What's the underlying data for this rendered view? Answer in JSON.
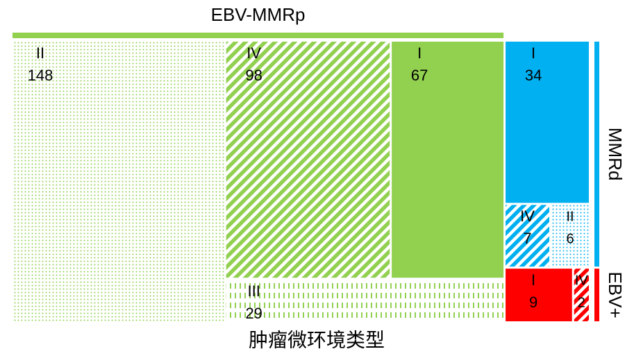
{
  "chart_data": {
    "type": "treemap",
    "title": "肿瘤微环境类型",
    "groups": [
      {
        "name": "EBV-MMRp",
        "color": "#92d050",
        "categories": [
          "II",
          "IV",
          "I",
          "III"
        ],
        "values": [
          148,
          98,
          67,
          29
        ],
        "patterns": [
          "dots",
          "stripes",
          "solid",
          "dashes"
        ]
      },
      {
        "name": "MMRd",
        "color": "#00b0f0",
        "categories": [
          "I",
          "IV",
          "II"
        ],
        "values": [
          34,
          7,
          6
        ],
        "patterns": [
          "solid",
          "stripes",
          "dots"
        ]
      },
      {
        "name": "EBV+",
        "color": "#ff0000",
        "categories": [
          "I",
          "IV"
        ],
        "values": [
          9,
          2
        ],
        "patterns": [
          "solid",
          "stripes"
        ]
      }
    ]
  }
}
